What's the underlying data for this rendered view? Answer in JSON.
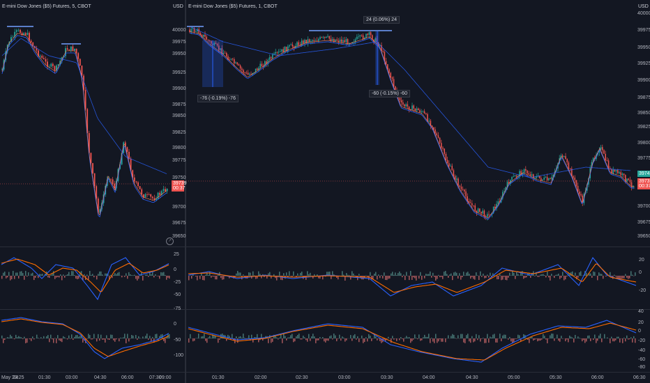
{
  "left": {
    "title": "E-mini Dow Jones ($5) Futures, 5, CBOT",
    "currency": "USD",
    "price_ticks": [
      "40000",
      "39975",
      "39950",
      "39925",
      "39900",
      "39875",
      "39850",
      "39825",
      "39800",
      "39775",
      "39750",
      "39700",
      "39675",
      "39650"
    ],
    "current_price": "39739",
    "countdown": "00:37",
    "macd1_ticks": [
      "25",
      "0",
      "-25",
      "-50",
      "-75"
    ],
    "macd2_ticks": [
      "0",
      "-50",
      "-100"
    ],
    "time_ticks": [
      "May '24",
      "23:25",
      "01:30",
      "03:00",
      "04:30",
      "06:00",
      "07:30",
      "09:00"
    ]
  },
  "right": {
    "title": "E-mini Dow Jones ($5) Futures, 1, CBOT",
    "currency": "USD",
    "price_ticks": [
      "39975",
      "39950",
      "39925",
      "39900",
      "39875",
      "39850",
      "39825",
      "39800",
      "39775",
      "39700",
      "39675",
      "39650"
    ],
    "top_label": "40000",
    "current_price": "39739",
    "current_price_2": "39742",
    "countdown": "00:37",
    "macd1_ticks": [
      "20",
      "0",
      "-20"
    ],
    "macd2_ticks": [
      "40",
      "20",
      "0",
      "-20",
      "-40",
      "-60",
      "-80"
    ],
    "time_ticks": [
      "01:30",
      "02:00",
      "02:30",
      "03:00",
      "03:30",
      "04:00",
      "04:30",
      "05:00",
      "05:30",
      "06:00",
      "06:30"
    ],
    "measure_1": "-76 (-0.19%) -76",
    "measure_2": "24 (0.06%) 24",
    "measure_3": "-60 (-0.15%) -60"
  },
  "colors": {
    "bg": "#131722",
    "up": "#26a69a",
    "down": "#ef5350",
    "macd": "#2962ff",
    "signal": "#ff6d00",
    "ma": "#2962ff"
  }
}
